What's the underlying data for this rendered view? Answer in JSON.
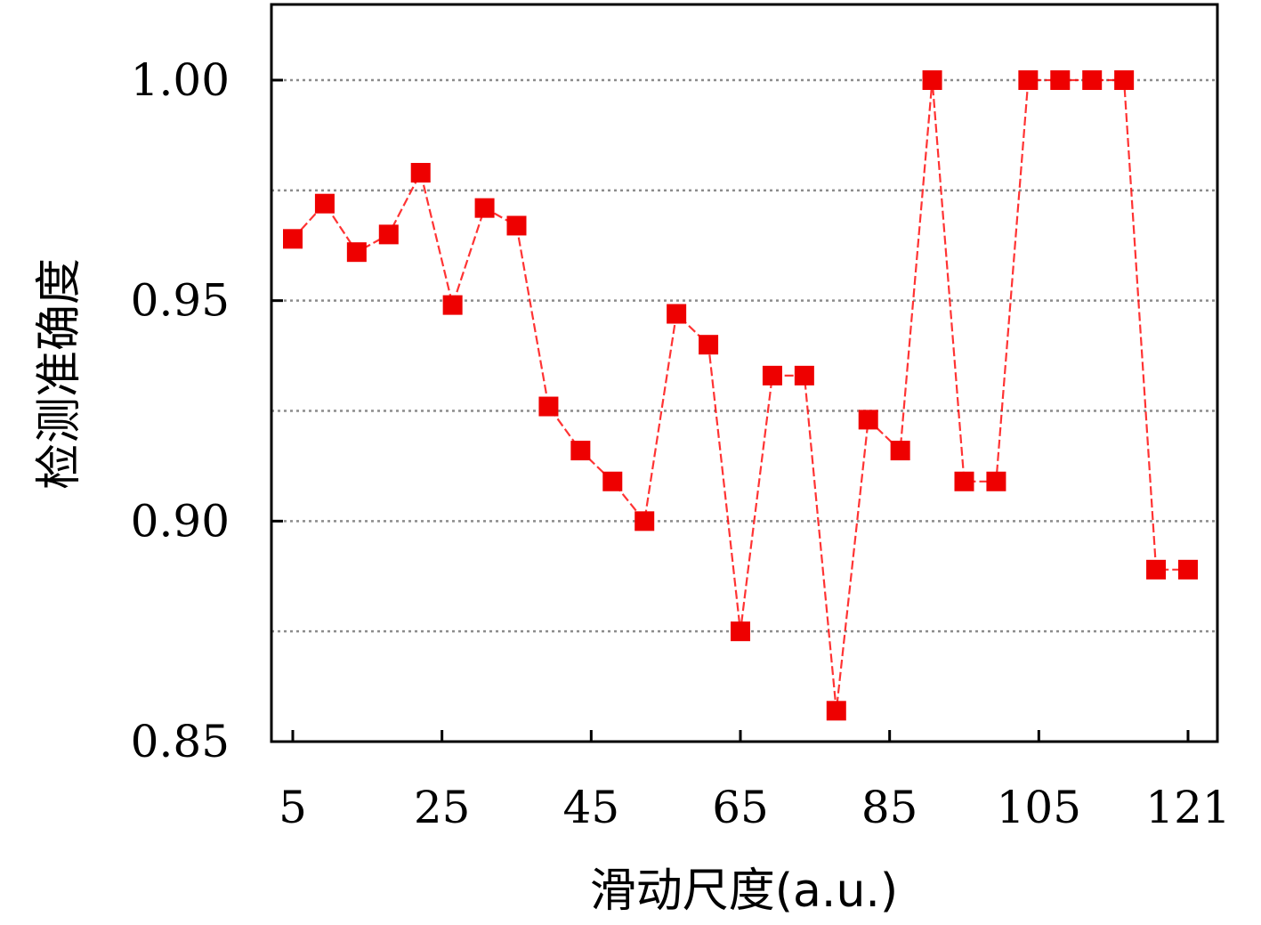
{
  "chart_data": {
    "type": "line",
    "xlabel": "滑动尺度(a.u.)",
    "ylabel": "检测准确度",
    "ylim": [
      0.85,
      1.0
    ],
    "y_ticks": [
      "0.85",
      "0.90",
      "0.95",
      "1.00"
    ],
    "y_tick_values": [
      0.85,
      0.9,
      0.95,
      1.0
    ],
    "x_ticks": [
      "5",
      "25",
      "45",
      "65",
      "85",
      "105",
      "121"
    ],
    "grid": "horizontal dotted",
    "colors": {
      "series": "#ff0000",
      "marker": "#ee0000",
      "grid": "#8c8c8c"
    },
    "series": [
      {
        "marker": "square",
        "values": [
          0.964,
          0.972,
          0.961,
          0.965,
          0.979,
          0.949,
          0.971,
          0.967,
          0.926,
          0.916,
          0.909,
          0.9,
          0.947,
          0.94,
          0.875,
          0.933,
          0.933,
          0.857,
          0.923,
          0.916,
          1.0,
          0.909,
          0.909,
          1.0,
          1.0,
          1.0,
          1.0,
          0.889,
          0.889
        ]
      }
    ]
  }
}
